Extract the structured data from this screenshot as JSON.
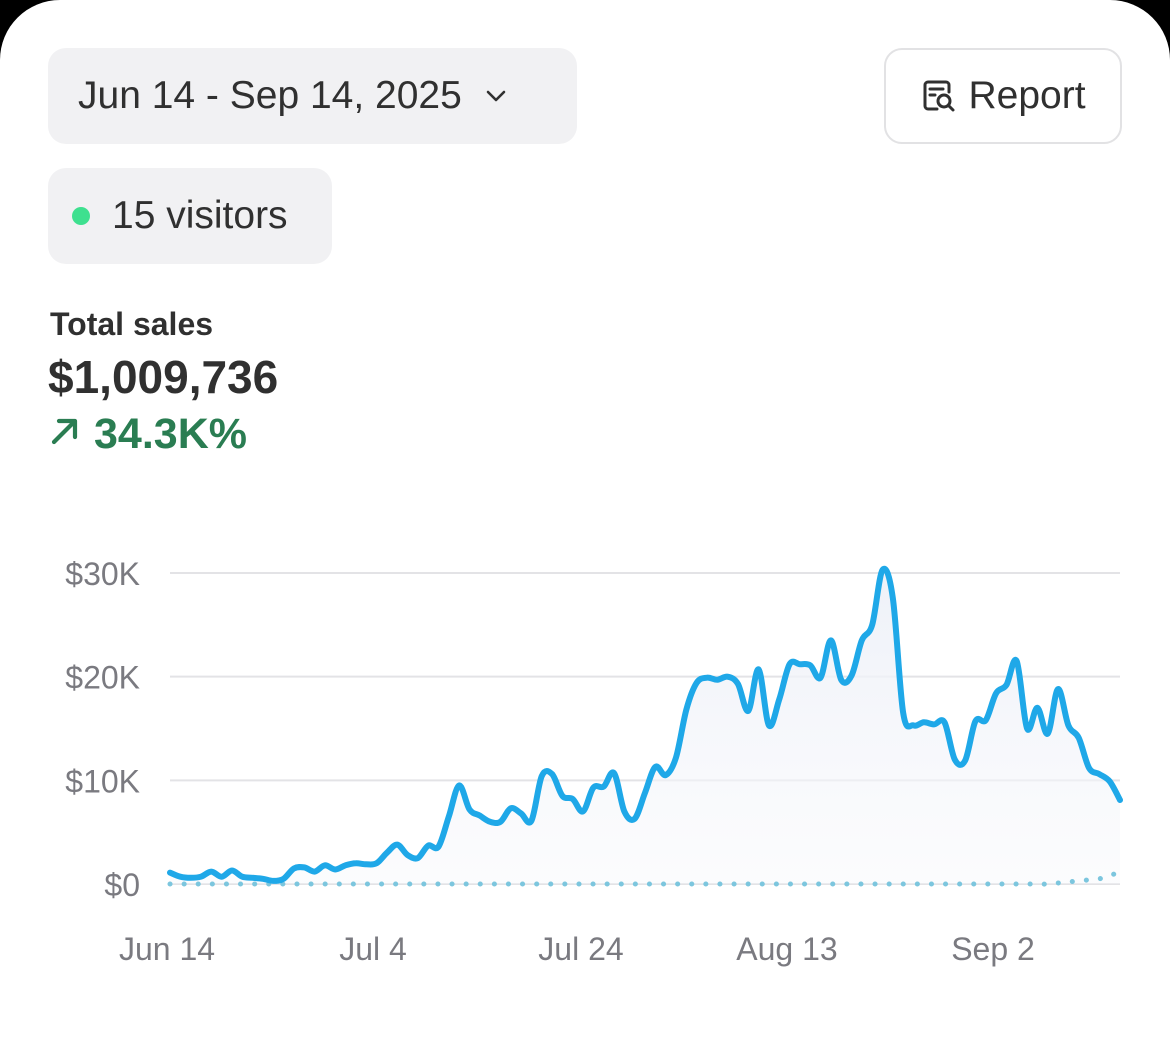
{
  "date_range": {
    "label": "Jun 14 - Sep 14, 2025",
    "icon": "chevron-down-icon"
  },
  "report": {
    "label": "Report",
    "icon": "report-search-icon"
  },
  "visitors": {
    "label": "15 visitors",
    "dot_color": "#3ee08f"
  },
  "metric": {
    "label": "Total sales",
    "value": "$1,009,736",
    "change": "34.3K%",
    "change_icon": "arrow-up-right-icon",
    "change_color": "#2a7d52"
  },
  "colors": {
    "primary_line": "#1fa8e8",
    "comparison_line": "#7cc6de",
    "grid": "#e3e3e6"
  },
  "chart_data": {
    "type": "line",
    "ylabel": "",
    "xlabel": "",
    "ylim": [
      0,
      30000
    ],
    "y_ticks": [
      {
        "value": 0,
        "label": "$0"
      },
      {
        "value": 10000,
        "label": "$10K"
      },
      {
        "value": 20000,
        "label": "$20K"
      },
      {
        "value": 30000,
        "label": "$30K"
      }
    ],
    "x_ticks": [
      "Jun 14",
      "Jul 4",
      "Jul 24",
      "Aug 13",
      "Sep 2"
    ],
    "x_start": "2025-06-14",
    "x_end": "2025-09-14",
    "grid": true,
    "series": [
      {
        "style": "solid",
        "values": [
          1100,
          700,
          600,
          700,
          1200,
          700,
          1300,
          700,
          600,
          500,
          300,
          500,
          1500,
          1600,
          1200,
          1800,
          1400,
          1800,
          2000,
          1900,
          2000,
          3000,
          3800,
          2800,
          2500,
          3700,
          3600,
          6500,
          9500,
          7200,
          6600,
          6000,
          6000,
          7300,
          6800,
          6100,
          10400,
          10600,
          8500,
          8200,
          7000,
          9300,
          9400,
          10700,
          7000,
          6300,
          8800,
          11300,
          10500,
          12200,
          16800,
          19400,
          19900,
          19700,
          20000,
          19300,
          16700,
          20700,
          15300,
          17800,
          21200,
          21200,
          21100,
          19900,
          23500,
          19700,
          20100,
          23500,
          25000,
          30300,
          27600,
          16500,
          15300,
          15600,
          15400,
          15600,
          12000,
          11900,
          15700,
          15800,
          18400,
          19200,
          21500,
          15000,
          17000,
          14500,
          18800,
          15300,
          14100,
          11200,
          10600,
          9900,
          8100
        ]
      },
      {
        "style": "dotted",
        "values": [
          0,
          0,
          0,
          0,
          0,
          0,
          0,
          0,
          0,
          0,
          0,
          0,
          0,
          0,
          0,
          0,
          0,
          0,
          0,
          0,
          0,
          0,
          0,
          0,
          0,
          0,
          0,
          0,
          0,
          0,
          0,
          0,
          0,
          0,
          0,
          0,
          0,
          0,
          0,
          0,
          0,
          0,
          0,
          0,
          0,
          0,
          0,
          0,
          0,
          0,
          0,
          0,
          0,
          0,
          0,
          0,
          0,
          0,
          0,
          0,
          0,
          0,
          0,
          0,
          0,
          0,
          0,
          0,
          0,
          0,
          0,
          0,
          0,
          0,
          0,
          0,
          0,
          0,
          0,
          0,
          0,
          0,
          0,
          0,
          0,
          0,
          100,
          200,
          300,
          400,
          500,
          800,
          1200
        ]
      }
    ]
  }
}
